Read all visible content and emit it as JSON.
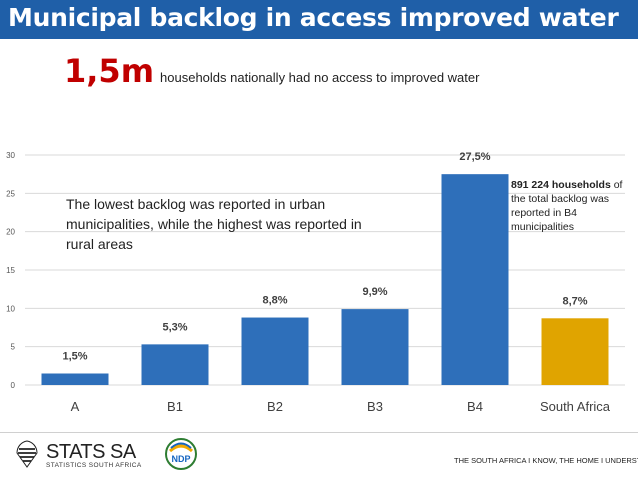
{
  "header": {
    "title": "Municipal backlog in access improved water"
  },
  "headline": {
    "value": "1,5m",
    "text": "households nationally had no access to improved water"
  },
  "annotation": "The lowest backlog was reported in urban municipalities, while the highest was reported in rural areas",
  "side_note": {
    "bold": "891 224 households",
    "rest": " of the total backlog was reported in B4 municipalities"
  },
  "footer": {
    "logo_name": "STATS SA",
    "logo_sub": "STATISTICS SOUTH AFRICA",
    "ndp_label": "NDP",
    "slogan": "THE SOUTH AFRICA I KNOW, THE HOME I UNDERSTAND"
  },
  "colors": {
    "title_bar": "#1f5fa8",
    "bar_blue": "#2e6fba",
    "bar_highlight": "#e0a400",
    "headline_red": "#c00000"
  },
  "chart_data": {
    "type": "bar",
    "categories": [
      "A",
      "B1",
      "B2",
      "B3",
      "B4",
      "South Africa"
    ],
    "values": [
      1.5,
      5.3,
      8.8,
      9.9,
      27.5,
      8.7
    ],
    "data_labels": [
      "1,5%",
      "5,3%",
      "8,8%",
      "9,9%",
      "27,5%",
      "8,7%"
    ],
    "highlight_index": 5,
    "ylim": [
      0,
      30
    ],
    "yticks": [
      0,
      5,
      10,
      15,
      20,
      25,
      30
    ],
    "grid": true,
    "legend": "none"
  }
}
